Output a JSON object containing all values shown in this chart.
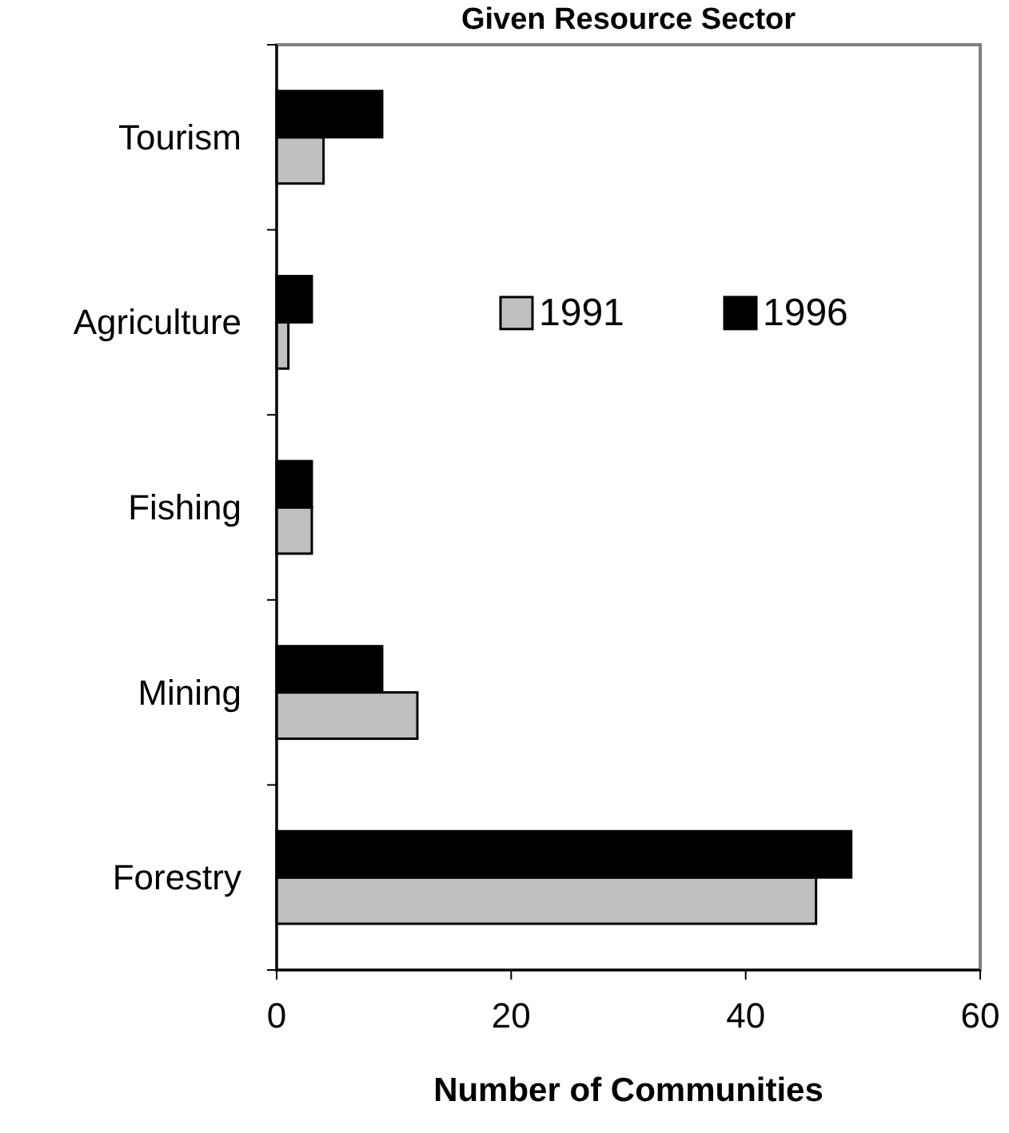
{
  "chart_data": {
    "type": "bar",
    "orientation": "horizontal",
    "title": "Given Resource Sector",
    "xlabel": "Number of Communities",
    "categories": [
      "Tourism",
      "Agriculture",
      "Fishing",
      "Mining",
      "Forestry"
    ],
    "series": [
      {
        "name": "1991",
        "color": "#c0c0c0",
        "values": [
          4,
          1,
          3,
          12,
          46
        ]
      },
      {
        "name": "1996",
        "color": "#000000",
        "values": [
          9,
          3,
          3,
          9,
          49
        ]
      }
    ],
    "xlim": [
      0,
      60
    ],
    "xticks": [
      0,
      20,
      40,
      60
    ],
    "grid": false,
    "legend": "right"
  }
}
